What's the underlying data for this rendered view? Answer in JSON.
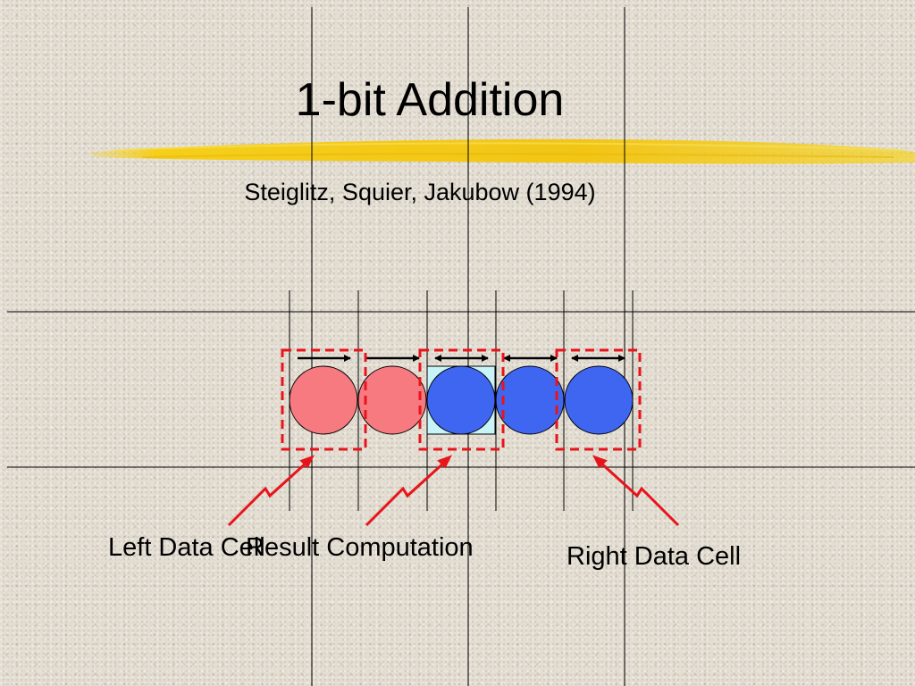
{
  "slide": {
    "title": "1-bit Addition",
    "subtitle": "Steiglitz, Squier, Jakubow (1994)"
  },
  "diagram": {
    "cells": [
      {
        "id": "cell-1",
        "color": "#f77a80"
      },
      {
        "id": "cell-2",
        "color": "#f77a80"
      },
      {
        "id": "cell-3",
        "color": "#3f66f0"
      },
      {
        "id": "cell-4",
        "color": "#3f66f0"
      },
      {
        "id": "cell-5",
        "color": "#3f66f0"
      }
    ],
    "highlight_color": "#c8f3f7",
    "dashed_box_color": "#e8141b",
    "pointer_color": "#e8141b",
    "labels": {
      "left": "Left Data Cell",
      "result": "Result Computation",
      "right": "Right Data Cell"
    }
  }
}
